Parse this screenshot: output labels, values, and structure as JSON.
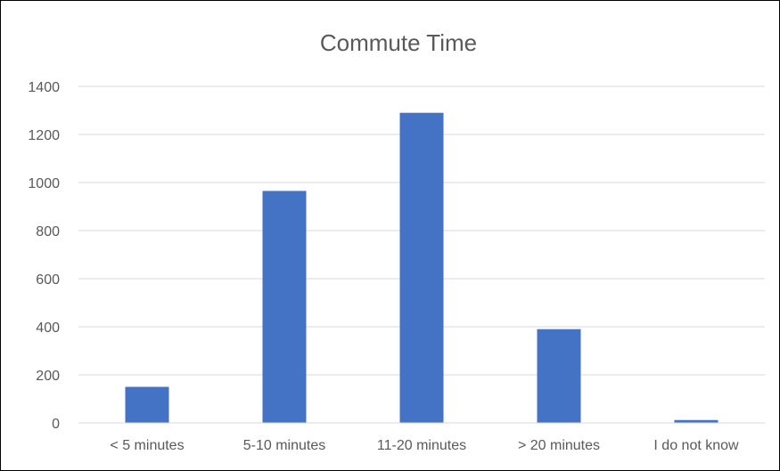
{
  "chart_data": {
    "type": "bar",
    "title": "Commute Time",
    "xlabel": "",
    "ylabel": "",
    "categories": [
      "< 5 minutes",
      "5-10 minutes",
      "11-20 minutes",
      "> 20 minutes",
      "I do not know"
    ],
    "values": [
      150,
      965,
      1290,
      390,
      12
    ],
    "ylim": [
      0,
      1400
    ],
    "yticks": [
      0,
      200,
      400,
      600,
      800,
      1000,
      1200,
      1400
    ],
    "grid": true,
    "legend": "none",
    "bar_color": "#4472c4"
  }
}
